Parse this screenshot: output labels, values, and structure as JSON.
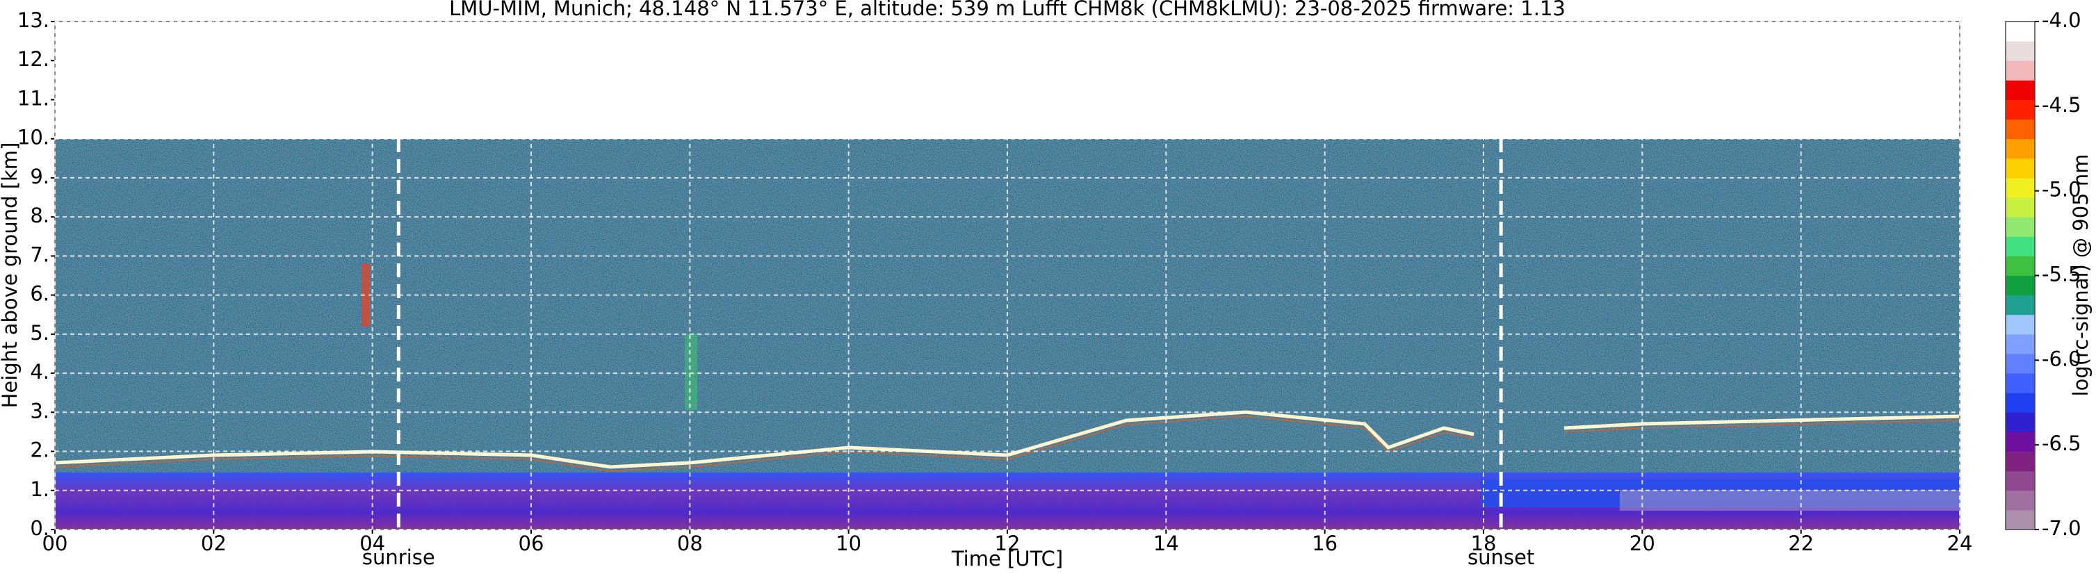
{
  "chart_data": {
    "type": "heatmap",
    "title": "LMU-MIM, Munich; 48.148° N 11.573° E, altitude: 539 m    Lufft CHM8k (CHM8kLMU): 23-08-2025    firmware: 1.13",
    "x_label": "Time [UTC]",
    "y_label": "Height above ground [km]",
    "xlim": [
      0,
      24
    ],
    "xticks": [
      {
        "value": 0,
        "label": "00"
      },
      {
        "value": 2,
        "label": "02"
      },
      {
        "value": 4,
        "label": "04"
      },
      {
        "value": 6,
        "label": "06"
      },
      {
        "value": 8,
        "label": "08"
      },
      {
        "value": 10,
        "label": "10"
      },
      {
        "value": 12,
        "label": "12"
      },
      {
        "value": 14,
        "label": "14"
      },
      {
        "value": 16,
        "label": "16"
      },
      {
        "value": 18,
        "label": "18"
      },
      {
        "value": 20,
        "label": "20"
      },
      {
        "value": 22,
        "label": "22"
      },
      {
        "value": 24,
        "label": "24"
      }
    ],
    "ylim": [
      0,
      13
    ],
    "yticks": [
      {
        "value": 0,
        "label": "0."
      },
      {
        "value": 1,
        "label": "1."
      },
      {
        "value": 2,
        "label": "2."
      },
      {
        "value": 3,
        "label": "3."
      },
      {
        "value": 4,
        "label": "4."
      },
      {
        "value": 5,
        "label": "5."
      },
      {
        "value": 6,
        "label": "6."
      },
      {
        "value": 7,
        "label": "7."
      },
      {
        "value": 8,
        "label": "8."
      },
      {
        "value": 9,
        "label": "9."
      },
      {
        "value": 10,
        "label": "10."
      },
      {
        "value": 11,
        "label": "11."
      },
      {
        "value": 12,
        "label": "12."
      },
      {
        "value": 13,
        "label": "13."
      }
    ],
    "grid": true,
    "annotations": [
      {
        "text": "sunrise",
        "x": 4.33
      },
      {
        "text": "sunset",
        "x": 18.22
      }
    ],
    "colorbar": {
      "label": "log(rc-signal) @ 905 nm",
      "lim": [
        -7,
        -4
      ],
      "ticks": [
        {
          "value": -7,
          "label": "-7.0"
        },
        {
          "value": -6.5,
          "label": "-6.5"
        },
        {
          "value": -6,
          "label": "-6.0"
        },
        {
          "value": -5.5,
          "label": "-5.5"
        },
        {
          "value": -5,
          "label": "-5.0"
        },
        {
          "value": -4.5,
          "label": "-4.5"
        },
        {
          "value": -4,
          "label": "-4.0"
        }
      ],
      "colors": [
        "#ab8fab",
        "#a070a0",
        "#904890",
        "#802080",
        "#7010a0",
        "#3020d0",
        "#2040f0",
        "#4060ff",
        "#6080ff",
        "#80a0ff",
        "#a0c8ff",
        "#20a090",
        "#10a040",
        "#40c040",
        "#40e080",
        "#90e870",
        "#c8f040",
        "#f0f020",
        "#ffd000",
        "#ffa000",
        "#ff6000",
        "#ff2000",
        "#f00000",
        "#f0b8b8",
        "#e8dcdc",
        "#ffffff"
      ]
    }
  }
}
